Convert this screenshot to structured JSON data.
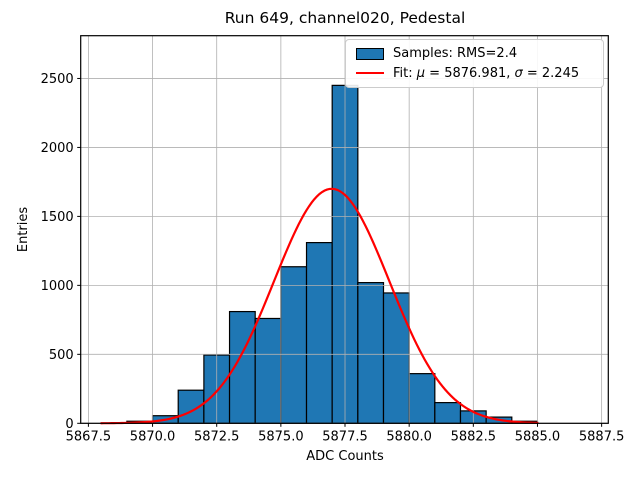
{
  "title": "Run 649, channel020, Pedestal",
  "chart_data": {
    "type": "bar",
    "title": "Run 649, channel020, Pedestal",
    "xlabel": "ADC Counts",
    "ylabel": "Entries",
    "xlim": [
      5867.2,
      5887.76
    ],
    "ylim": [
      0,
      2810
    ],
    "grid": true,
    "legend_position": "upper right",
    "x_ticks": [
      {
        "v": 5867.5,
        "label": "5867.5"
      },
      {
        "v": 5870.0,
        "label": "5870.0"
      },
      {
        "v": 5872.5,
        "label": "5872.5"
      },
      {
        "v": 5875.0,
        "label": "5875.0"
      },
      {
        "v": 5877.5,
        "label": "5877.5"
      },
      {
        "v": 5880.0,
        "label": "5880.0"
      },
      {
        "v": 5882.5,
        "label": "5882.5"
      },
      {
        "v": 5885.0,
        "label": "5885.0"
      },
      {
        "v": 5887.5,
        "label": "5887.5"
      }
    ],
    "y_ticks": [
      {
        "v": 0,
        "label": "0"
      },
      {
        "v": 500,
        "label": "500"
      },
      {
        "v": 1000,
        "label": "1000"
      },
      {
        "v": 1500,
        "label": "1500"
      },
      {
        "v": 2000,
        "label": "2000"
      },
      {
        "v": 2500,
        "label": "2500"
      }
    ],
    "bin_width": 1,
    "bins": [
      {
        "x": 5869,
        "count": 15
      },
      {
        "x": 5870,
        "count": 55
      },
      {
        "x": 5871,
        "count": 240
      },
      {
        "x": 5872,
        "count": 495
      },
      {
        "x": 5873,
        "count": 810
      },
      {
        "x": 5874,
        "count": 760
      },
      {
        "x": 5875,
        "count": 1135
      },
      {
        "x": 5876,
        "count": 1310
      },
      {
        "x": 5877,
        "count": 2450
      },
      {
        "x": 5878,
        "count": 1020
      },
      {
        "x": 5879,
        "count": 945
      },
      {
        "x": 5880,
        "count": 360
      },
      {
        "x": 5881,
        "count": 150
      },
      {
        "x": 5882,
        "count": 90
      },
      {
        "x": 5883,
        "count": 45
      },
      {
        "x": 5884,
        "count": 15
      }
    ],
    "fit": {
      "mu": 5876.981,
      "sigma": 2.245,
      "amplitude": 1700,
      "x_start": 5868.0,
      "x_end": 5885.0
    },
    "legend": {
      "entries": [
        {
          "type": "patch",
          "color": "#1f77b4",
          "label": "Samples: RMS=2.4"
        },
        {
          "type": "line",
          "color": "#ff0000",
          "label_parts": [
            {
              "t": "Fit: "
            },
            {
              "t": "μ",
              "italic": true
            },
            {
              "t": " = 5876.981, "
            },
            {
              "t": "σ",
              "italic": true
            },
            {
              "t": " = 2.245"
            }
          ]
        }
      ]
    },
    "colors": {
      "bar_fill": "#1f77b4",
      "bar_edge": "#000000",
      "fit_line": "#ff0000",
      "grid": "#b0b0b0",
      "frame": "#000000",
      "background": "#ffffff"
    }
  }
}
